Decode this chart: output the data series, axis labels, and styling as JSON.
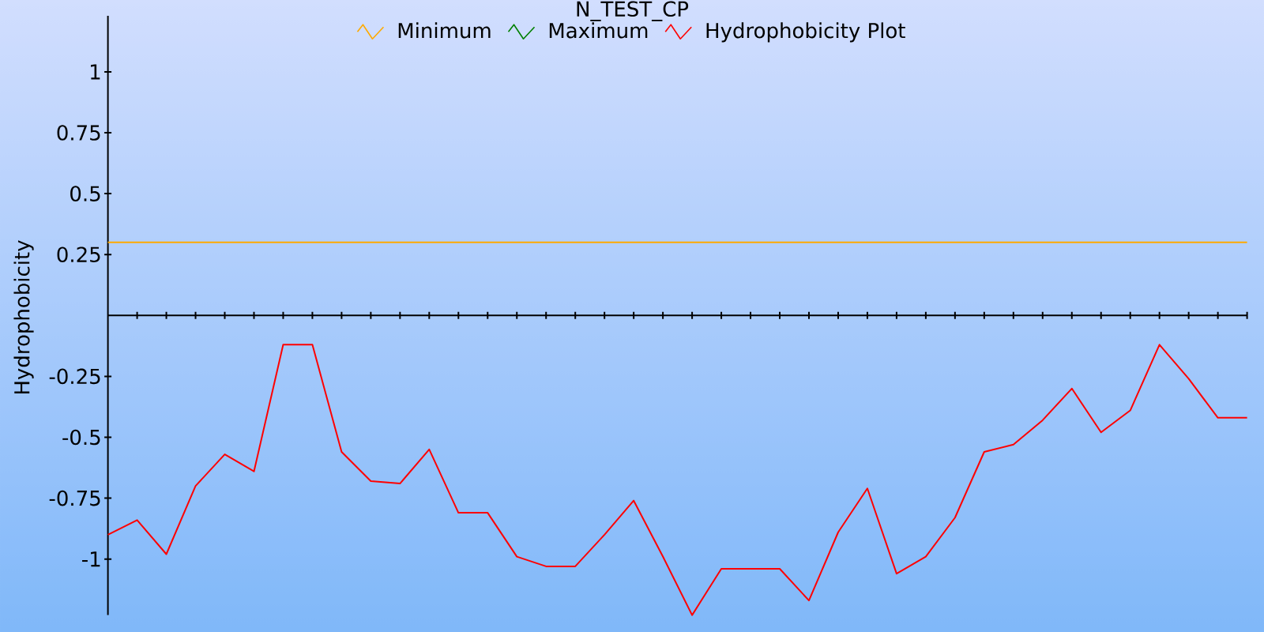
{
  "chart_data": {
    "type": "line",
    "title": "N_TEST_CP",
    "ylabel": "Hydrophobicity",
    "categories": [
      null,
      null,
      null,
      null,
      null,
      null,
      null,
      null,
      null,
      null,
      null,
      null,
      null,
      null,
      null,
      null,
      null,
      null,
      null,
      null,
      null,
      null,
      null,
      null,
      null,
      null,
      null,
      null,
      null,
      null,
      null,
      null,
      null,
      null,
      null,
      null,
      null,
      null,
      null,
      null
    ],
    "series": [
      {
        "name": "Minimum",
        "color": "#ffaa00",
        "values": [
          0.3,
          0.3,
          0.3,
          0.3,
          0.3,
          0.3,
          0.3,
          0.3,
          0.3,
          0.3,
          0.3,
          0.3,
          0.3,
          0.3,
          0.3,
          0.3,
          0.3,
          0.3,
          0.3,
          0.3,
          0.3,
          0.3,
          0.3,
          0.3,
          0.3,
          0.3,
          0.3,
          0.3,
          0.3,
          0.3,
          0.3,
          0.3,
          0.3,
          0.3,
          0.3,
          0.3,
          0.3,
          0.3,
          0.3,
          0.3
        ]
      },
      {
        "name": "Maximum",
        "color": "#008000",
        "values": [
          null,
          null,
          null,
          null,
          null,
          null,
          null,
          null,
          null,
          null,
          null,
          null,
          null,
          null,
          null,
          null,
          null,
          null,
          null,
          null,
          null,
          null,
          null,
          null,
          null,
          null,
          null,
          null,
          null,
          null,
          null,
          null,
          null,
          null,
          null,
          null,
          null,
          null,
          null,
          null
        ]
      },
      {
        "name": "Hydrophobicity Plot",
        "color": "#ff0000",
        "values": [
          -0.9,
          -0.84,
          -0.98,
          -0.7,
          -0.57,
          -0.64,
          -0.12,
          -0.12,
          -0.56,
          -0.68,
          -0.69,
          -0.55,
          -0.81,
          -0.81,
          -0.99,
          -1.03,
          -1.03,
          -0.9,
          -0.76,
          -0.99,
          -1.23,
          -1.04,
          -1.04,
          -1.04,
          -1.17,
          -0.89,
          -0.71,
          -1.06,
          -0.99,
          -0.83,
          -0.56,
          -0.53,
          -0.43,
          -0.3,
          -0.48,
          -0.39,
          -0.12,
          -0.26,
          -0.42,
          -0.42
        ]
      }
    ],
    "ylim": [
      -1.23,
      1.23
    ],
    "yticks": [
      -1,
      -0.75,
      -0.5,
      -0.25,
      0.25,
      0.5,
      0.75,
      1
    ],
    "legend": "top"
  }
}
